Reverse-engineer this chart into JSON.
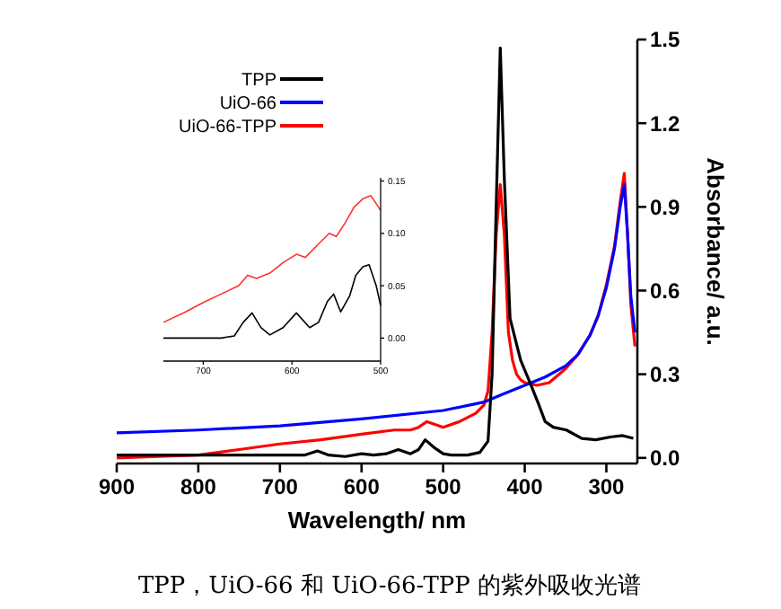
{
  "chart_data": [
    {
      "type": "line",
      "xlabel": "Wavelength/ nm",
      "ylabel": "Absorbance/ a.u.",
      "xlim": [
        900,
        262
      ],
      "ylim": [
        -0.02,
        1.5
      ],
      "xticks": [
        900,
        800,
        700,
        600,
        500,
        400,
        300
      ],
      "yticks": [
        {
          "value": 0,
          "label": "0.0"
        },
        {
          "value": 0.3,
          "label": "0.3"
        },
        {
          "value": 0.6,
          "label": "0.6"
        },
        {
          "value": 0.9,
          "label": "0.9"
        },
        {
          "value": 1.2,
          "label": "1.2"
        },
        {
          "value": 1.5,
          "label": "1.5"
        }
      ],
      "legend": "top left",
      "annotations": [
        "TPP，UiO-66 和 UiO-66-TPP 的紫外吸收光谱"
      ],
      "series": [
        {
          "name": "TPP",
          "color": "#000000",
          "x": [
            900,
            850,
            800,
            750,
            700,
            670,
            654,
            640,
            620,
            600,
            585,
            570,
            555,
            540,
            530,
            522,
            510,
            500,
            490,
            470,
            455,
            445,
            440,
            435,
            430,
            425,
            418,
            405,
            395,
            384,
            375,
            365,
            349,
            330,
            313,
            295,
            280,
            267
          ],
          "values": [
            0.01,
            0.01,
            0.01,
            0.01,
            0.01,
            0.01,
            0.025,
            0.01,
            0.005,
            0.015,
            0.01,
            0.015,
            0.03,
            0.015,
            0.03,
            0.065,
            0.035,
            0.015,
            0.01,
            0.01,
            0.02,
            0.06,
            0.3,
            0.9,
            1.47,
            1.0,
            0.5,
            0.35,
            0.28,
            0.2,
            0.13,
            0.11,
            0.1,
            0.07,
            0.065,
            0.075,
            0.08,
            0.07
          ]
        },
        {
          "name": "UiO-66",
          "color": "#0000ff",
          "x": [
            900,
            800,
            700,
            600,
            500,
            450,
            430,
            400,
            375,
            350,
            335,
            320,
            310,
            300,
            290,
            283,
            278,
            274,
            270,
            265
          ],
          "values": [
            0.09,
            0.1,
            0.115,
            0.14,
            0.17,
            0.2,
            0.225,
            0.26,
            0.29,
            0.33,
            0.37,
            0.44,
            0.51,
            0.61,
            0.75,
            0.9,
            0.98,
            0.8,
            0.58,
            0.45
          ]
        },
        {
          "name": "UiO-66-TPP",
          "color": "#ff0000",
          "x": [
            900,
            850,
            800,
            750,
            700,
            650,
            600,
            560,
            540,
            530,
            520,
            510,
            500,
            480,
            460,
            450,
            445,
            440,
            435,
            430,
            425,
            420,
            415,
            410,
            405,
            400,
            385,
            370,
            350,
            335,
            320,
            310,
            300,
            290,
            283,
            278,
            274,
            270,
            265
          ],
          "values": [
            0.0,
            0.005,
            0.01,
            0.03,
            0.05,
            0.065,
            0.085,
            0.1,
            0.1,
            0.11,
            0.13,
            0.12,
            0.11,
            0.13,
            0.16,
            0.19,
            0.24,
            0.45,
            0.8,
            0.98,
            0.8,
            0.45,
            0.35,
            0.3,
            0.28,
            0.27,
            0.26,
            0.27,
            0.32,
            0.37,
            0.44,
            0.51,
            0.62,
            0.76,
            0.92,
            1.02,
            0.8,
            0.55,
            0.4
          ]
        }
      ]
    },
    {
      "type": "line",
      "xlim": [
        745,
        500
      ],
      "ylim": [
        -0.022,
        0.153
      ],
      "xticks": [
        500,
        600,
        700
      ],
      "yticks": [
        {
          "value": 0,
          "label": "0.00"
        },
        {
          "value": 0.05,
          "label": "0.05"
        },
        {
          "value": 0.1,
          "label": "0.10"
        },
        {
          "value": 0.15,
          "label": "0.15"
        }
      ],
      "series": [
        {
          "color": "#ff3030",
          "x": [
            745,
            720,
            700,
            680,
            660,
            650,
            640,
            625,
            610,
            595,
            585,
            570,
            558,
            550,
            540,
            530,
            520,
            511,
            500
          ],
          "values": [
            0.015,
            0.025,
            0.034,
            0.042,
            0.05,
            0.06,
            0.057,
            0.062,
            0.072,
            0.08,
            0.077,
            0.09,
            0.1,
            0.097,
            0.11,
            0.125,
            0.133,
            0.136,
            0.122
          ]
        },
        {
          "color": "#000000",
          "x": [
            745,
            700,
            680,
            665,
            655,
            645,
            635,
            625,
            610,
            595,
            580,
            570,
            560,
            553,
            545,
            535,
            528,
            520,
            513,
            505,
            500
          ],
          "values": [
            0,
            0,
            0,
            0.002,
            0.015,
            0.024,
            0.01,
            0.003,
            0.01,
            0.024,
            0.01,
            0.015,
            0.035,
            0.042,
            0.025,
            0.04,
            0.06,
            0.068,
            0.07,
            0.05,
            0.031
          ]
        }
      ]
    }
  ]
}
